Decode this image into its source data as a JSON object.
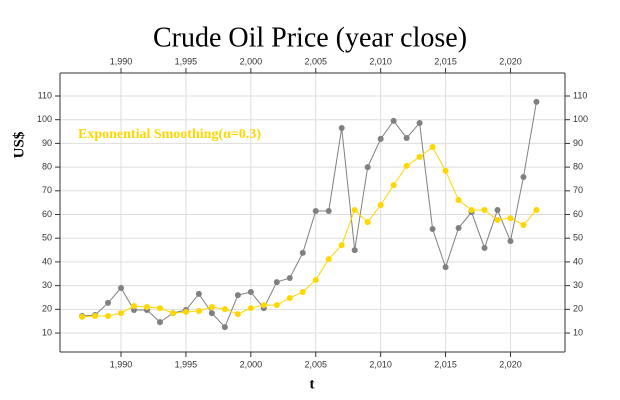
{
  "chart_data": {
    "type": "line",
    "title": "Crude Oil Price (year close)",
    "x_label": "t",
    "y_label": "US$",
    "x": [
      1987,
      1988,
      1989,
      1990,
      1991,
      1992,
      1993,
      1994,
      1995,
      1996,
      1997,
      1998,
      1999,
      2000,
      2001,
      2002,
      2003,
      2004,
      2005,
      2006,
      2007,
      2008,
      2009,
      2010,
      2011,
      2012,
      2013,
      2014,
      2015,
      2016,
      2017,
      2018,
      2019,
      2020,
      2021,
      2022
    ],
    "series": [
      {
        "name": "Crude Oil Price",
        "color": "#808080",
        "show_name": false,
        "values": [
          17.2,
          17.6,
          22.7,
          29,
          19.7,
          19.7,
          14.6,
          18.4,
          19.7,
          26.5,
          18.4,
          12.5,
          26,
          27.3,
          20.5,
          31.5,
          33.2,
          43.8,
          61.5,
          61.5,
          96.5,
          45,
          80,
          91.9,
          99.5,
          92.3,
          98.6,
          53.9,
          37.8,
          54.3,
          61,
          45.9,
          61.9,
          48.8,
          75.8,
          107.5
        ]
      },
      {
        "name": "Exponential Smoothing(α=0.3)",
        "color": "#ffd700",
        "show_name": true,
        "values": [
          16.8,
          17.2,
          17.2,
          18.4,
          21.4,
          21,
          20.5,
          18.4,
          18.9,
          19.3,
          21,
          20.1,
          18,
          20.5,
          21.8,
          21.8,
          24.8,
          27.3,
          32.4,
          41.2,
          47.1,
          61.9,
          56.8,
          64,
          72.4,
          80.5,
          84.3,
          88.5,
          78.4,
          66.1,
          61.9,
          61.9,
          57.7,
          58.5,
          55.6,
          61.9
        ]
      }
    ],
    "xlim": [
      1985.3,
      2024.2
    ],
    "xticks": [
      {
        "value": 1990,
        "label": "1,990"
      },
      {
        "value": 1995,
        "label": "1,995"
      },
      {
        "value": 2000,
        "label": "2,000"
      },
      {
        "value": 2005,
        "label": "2,005"
      },
      {
        "value": 2010,
        "label": "2,010"
      },
      {
        "value": 2015,
        "label": "2,015"
      },
      {
        "value": 2020,
        "label": "2,020"
      }
    ],
    "ylim": [
      2,
      119.7
    ],
    "yticks": [
      10,
      20,
      30,
      40,
      50,
      60,
      70,
      80,
      90,
      100,
      110
    ],
    "grid": true
  }
}
